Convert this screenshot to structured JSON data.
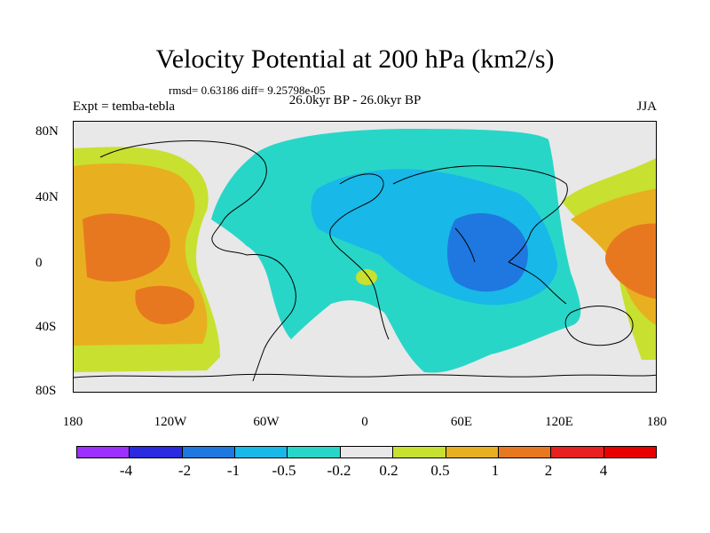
{
  "title": "Velocity Potential at 200 hPa (km2/s)",
  "stats": "rmsd= 0.63186 diff= 9.25798e-05",
  "experiment": "Expt = temba-tebla",
  "period": "26.0kyr BP - 26.0kyr BP",
  "season": "JJA",
  "lat_labels": [
    "80N",
    "40N",
    "0",
    "40S",
    "80S"
  ],
  "lon_labels": [
    "180",
    "120W",
    "60W",
    "0",
    "60E",
    "120E",
    "180"
  ],
  "colorbar": {
    "labels": [
      "-4",
      "-2",
      "-1",
      "-0.5",
      "-0.2",
      "0.2",
      "0.5",
      "1",
      "2",
      "4"
    ],
    "colors": [
      "#9b30ff",
      "#2a2ae0",
      "#1e78e0",
      "#18b8e8",
      "#28d6c8",
      "#e8e8e8",
      "#c8e030",
      "#e8b020",
      "#e87820",
      "#e82020"
    ]
  },
  "levels": {
    "neg_strong": "#1e78e0",
    "neg_mid": "#18b8e8",
    "neg_weak": "#28d6c8",
    "neutral": "#e8e8e8",
    "pos_weak": "#c8e030",
    "pos_mid": "#e8b020",
    "pos_strong": "#e87820"
  }
}
